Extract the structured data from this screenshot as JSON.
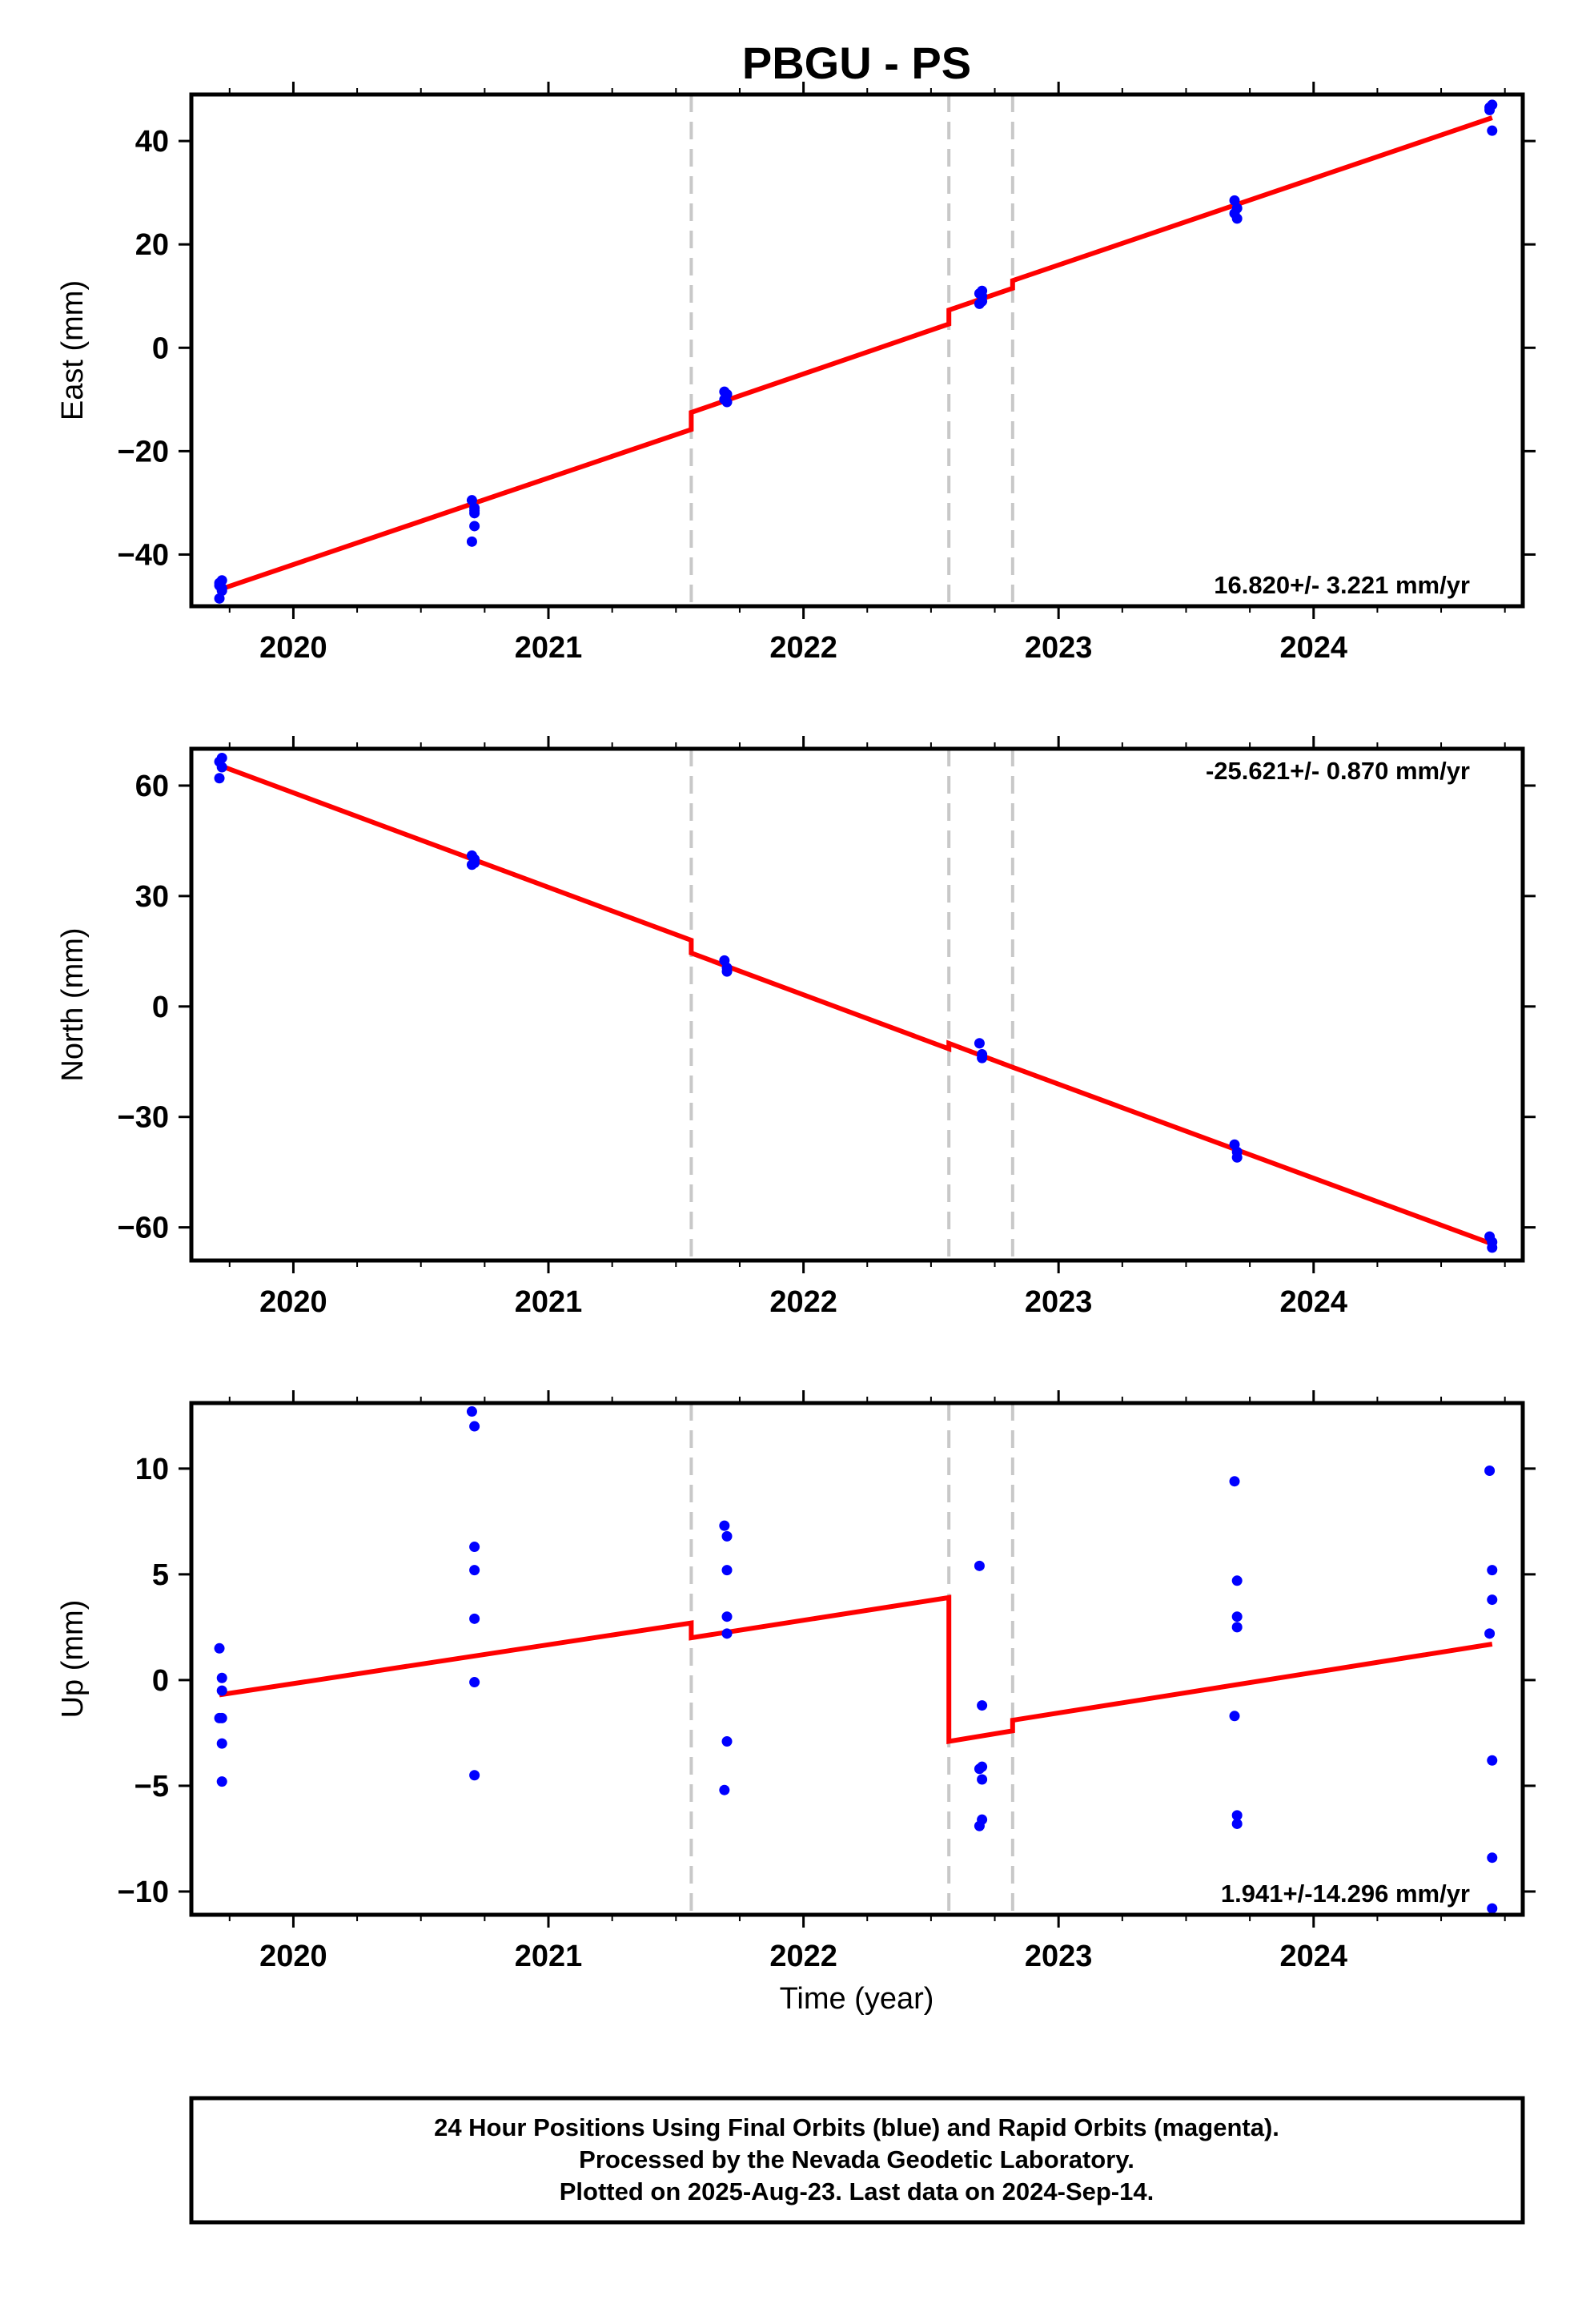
{
  "title": "PBGU - PS",
  "xlabel": "Time (year)",
  "footer": {
    "line1": "24 Hour Positions Using Final Orbits (blue) and Rapid Orbits (magenta).",
    "line2": "Processed by the Nevada Geodetic Laboratory.",
    "line3": "Plotted on 2025-Aug-23. Last data on 2024-Sep-14."
  },
  "colors": {
    "points": "#0000ff",
    "fit": "#ff0000",
    "breaks": "#c8c8c8",
    "frame": "#000000"
  },
  "chart_data": [
    {
      "type": "scatter",
      "ylabel": "East (mm)",
      "rate_text": "16.820+/- 3.221 mm/yr",
      "rate_position": "bottom-right",
      "xlim": [
        2019.6,
        2024.82
      ],
      "ylim": [
        -50,
        49
      ],
      "yticks": [
        -40,
        -20,
        0,
        20,
        40
      ],
      "xticks": [
        2020,
        2021,
        2022,
        2023,
        2024
      ],
      "breaks": [
        2021.56,
        2022.57,
        2022.82
      ],
      "points": {
        "x": [
          2019.71,
          2019.72,
          2019.72,
          2019.71,
          2019.72,
          2019.71,
          2020.7,
          2020.71,
          2020.71,
          2020.71,
          2020.7,
          2020.71,
          2021.69,
          2021.7,
          2021.7,
          2021.69,
          2022.69,
          2022.7,
          2022.7,
          2022.69,
          2022.7,
          2023.69,
          2023.7,
          2023.7,
          2023.69,
          2024.69,
          2024.7,
          2024.7,
          2024.69
        ],
        "y": [
          -45.5,
          -45,
          -46.5,
          -48.5,
          -47,
          -46,
          -29.5,
          -31,
          -31.5,
          -34.5,
          -37.5,
          -32,
          -8.5,
          -9,
          -10.5,
          -10,
          10.5,
          11,
          9,
          8.5,
          10,
          28.5,
          27,
          25,
          26,
          46,
          47,
          42,
          46.5
        ]
      },
      "fit": [
        {
          "x": [
            2019.71,
            2021.56
          ],
          "y": [
            -46.8,
            -15.8
          ]
        },
        {
          "x": [
            2021.56,
            2022.57
          ],
          "y": [
            -12.5,
            4.6
          ]
        },
        {
          "x": [
            2022.57,
            2022.82
          ],
          "y": [
            7.3,
            11.5
          ]
        },
        {
          "x": [
            2022.82,
            2024.7
          ],
          "y": [
            13.0,
            44.5
          ]
        }
      ]
    },
    {
      "type": "scatter",
      "ylabel": "North (mm)",
      "rate_text": "-25.621+/- 0.870 mm/yr",
      "rate_position": "top-right",
      "xlim": [
        2019.6,
        2024.82
      ],
      "ylim": [
        -69,
        70
      ],
      "yticks": [
        -60,
        -30,
        0,
        30,
        60
      ],
      "xticks": [
        2020,
        2021,
        2022,
        2023,
        2024
      ],
      "breaks": [
        2021.56,
        2022.57,
        2022.82
      ],
      "points": {
        "x": [
          2019.71,
          2019.72,
          2019.72,
          2019.71,
          2020.7,
          2020.71,
          2020.71,
          2020.7,
          2021.69,
          2021.7,
          2021.7,
          2022.69,
          2022.7,
          2022.7,
          2023.69,
          2023.7,
          2023.7,
          2024.69,
          2024.7,
          2024.7
        ],
        "y": [
          66.5,
          67.5,
          65,
          62,
          41,
          39,
          40,
          38.5,
          12.5,
          10.5,
          9.5,
          -10,
          -13,
          -14,
          -37.5,
          -39.5,
          -41,
          -62.5,
          -64,
          -65.5
        ]
      },
      "fit": [
        {
          "x": [
            2019.71,
            2021.56
          ],
          "y": [
            65.5,
            18.0
          ]
        },
        {
          "x": [
            2021.56,
            2022.57
          ],
          "y": [
            14.5,
            -11.5
          ]
        },
        {
          "x": [
            2022.57,
            2022.82
          ],
          "y": [
            -10.0,
            -16.5
          ]
        },
        {
          "x": [
            2022.82,
            2024.7
          ],
          "y": [
            -16.5,
            -64.5
          ]
        }
      ]
    },
    {
      "type": "scatter",
      "ylabel": "Up (mm)",
      "rate_text": "1.941+/-14.296 mm/yr",
      "rate_position": "bottom-right",
      "xlim": [
        2019.6,
        2024.82
      ],
      "ylim": [
        -11.1,
        13.1
      ],
      "yticks": [
        -10,
        -5,
        0,
        5,
        10
      ],
      "xticks": [
        2020,
        2021,
        2022,
        2023,
        2024
      ],
      "breaks": [
        2021.56,
        2022.57,
        2022.82
      ],
      "points": {
        "x": [
          2019.71,
          2019.72,
          2019.72,
          2019.71,
          2019.72,
          2019.72,
          2019.72,
          2020.7,
          2020.71,
          2020.71,
          2020.71,
          2020.71,
          2020.71,
          2020.71,
          2021.69,
          2021.7,
          2021.7,
          2021.7,
          2021.7,
          2021.7,
          2021.69,
          2022.69,
          2022.7,
          2022.7,
          2022.7,
          2022.69,
          2022.7,
          2022.69,
          2023.69,
          2023.7,
          2023.7,
          2023.7,
          2023.69,
          2023.7,
          2023.7,
          2024.69,
          2024.7,
          2024.7,
          2024.69,
          2024.7,
          2024.7,
          2024.7
        ],
        "y": [
          1.5,
          0.1,
          -0.5,
          -1.8,
          -3,
          -4.8,
          -1.8,
          12.7,
          12.0,
          6.3,
          5.2,
          2.9,
          -0.1,
          -4.5,
          7.3,
          6.8,
          5.2,
          3.0,
          2.2,
          -2.9,
          -5.2,
          5.4,
          -1.2,
          -4.1,
          -4.7,
          -6.9,
          -6.6,
          -4.2,
          9.4,
          4.7,
          3.0,
          2.5,
          -1.7,
          -6.4,
          -6.8,
          9.9,
          5.2,
          3.8,
          2.2,
          -3.8,
          -8.4,
          -10.8
        ]
      },
      "fit": [
        {
          "x": [
            2019.71,
            2021.56
          ],
          "y": [
            -0.7,
            2.7
          ]
        },
        {
          "x": [
            2021.56,
            2022.57
          ],
          "y": [
            2.0,
            3.9
          ]
        },
        {
          "x": [
            2022.57,
            2022.82
          ],
          "y": [
            -2.9,
            -2.4
          ]
        },
        {
          "x": [
            2022.82,
            2024.7
          ],
          "y": [
            -1.9,
            1.7
          ]
        }
      ]
    }
  ]
}
